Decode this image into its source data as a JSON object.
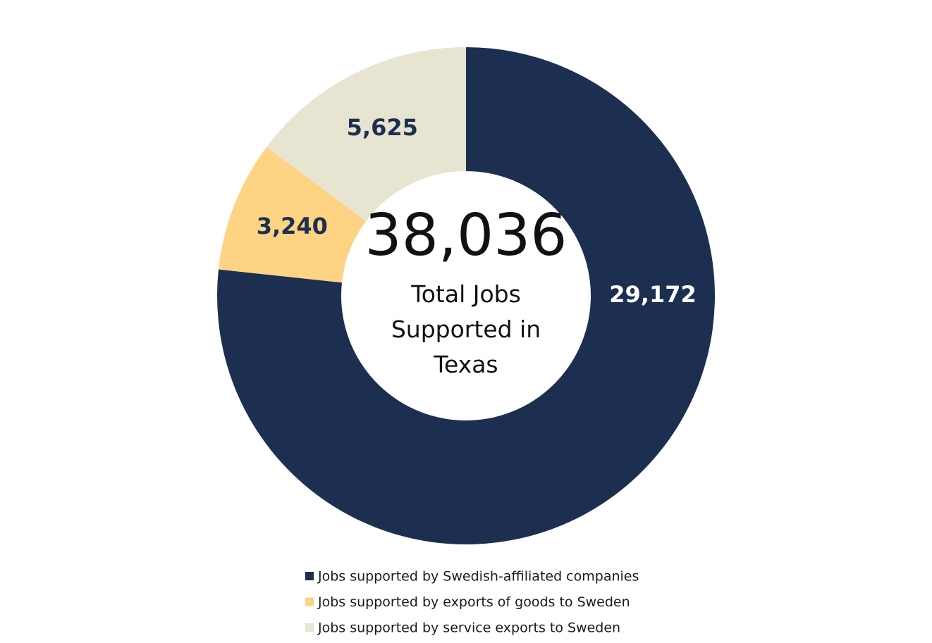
{
  "chart_data": {
    "type": "donut",
    "center_value": "38,036",
    "center_text": "Total Jobs Supported in Texas",
    "categories": [
      "Jobs supported by Swedish-affiliated companies",
      "Jobs supported by exports of goods to Sweden",
      "Jobs supported by service exports to Sweden"
    ],
    "values": [
      29172,
      3240,
      5625
    ],
    "value_labels": [
      "29,172",
      "3,240",
      "5,625"
    ],
    "colors": [
      "#1c2f50",
      "#fed384",
      "#e8e4d2"
    ],
    "label_colors": [
      "#ffffff",
      "#1c2f50",
      "#1c2f50"
    ]
  }
}
